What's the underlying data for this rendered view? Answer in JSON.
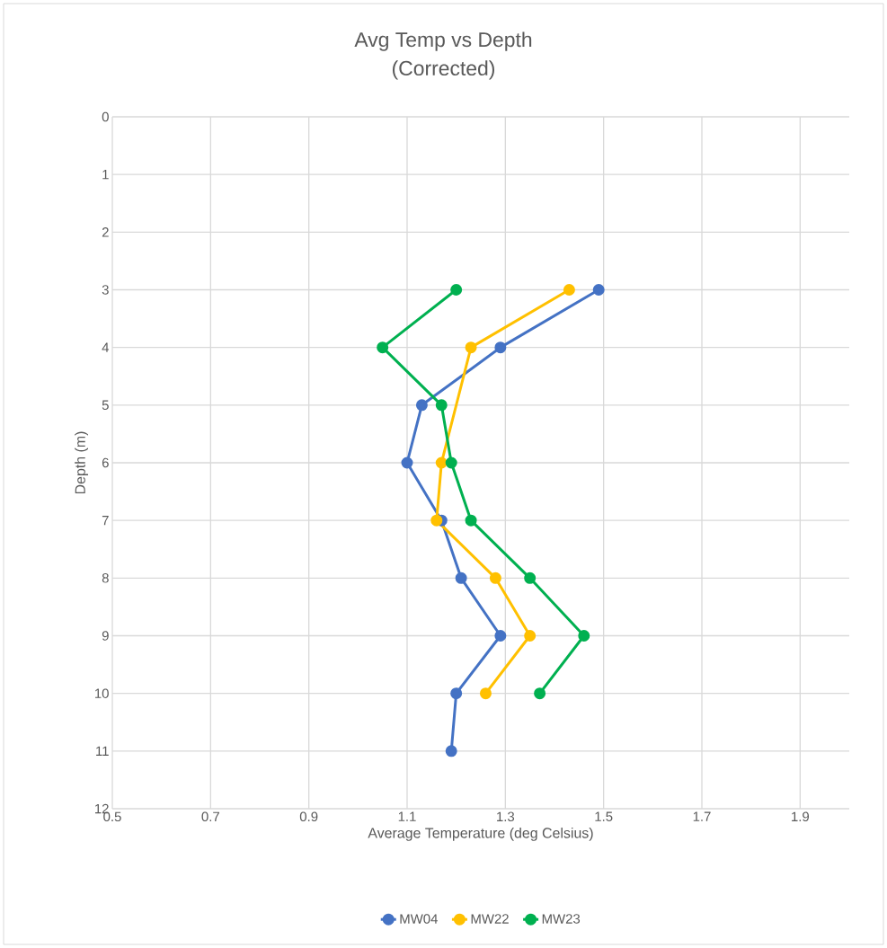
{
  "chart_data": {
    "type": "line",
    "title": "Avg Temp vs Depth",
    "subtitle": "(Corrected)",
    "xlabel": "Average Temperature (deg Celsius)",
    "ylabel": "Depth (m)",
    "xlim": [
      0.5,
      2.0
    ],
    "xticks": [
      {
        "value": 0.5,
        "label": "0.5"
      },
      {
        "value": 0.7,
        "label": "0.7"
      },
      {
        "value": 0.9,
        "label": "0.9"
      },
      {
        "value": 1.1,
        "label": "1.1"
      },
      {
        "value": 1.3,
        "label": "1.3"
      },
      {
        "value": 1.5,
        "label": "1.5"
      },
      {
        "value": 1.7,
        "label": "1.7"
      },
      {
        "value": 1.9,
        "label": "1.9"
      }
    ],
    "ylim": [
      12,
      0
    ],
    "yticks": [
      0,
      1,
      2,
      3,
      4,
      5,
      6,
      7,
      8,
      9,
      10,
      11,
      12
    ],
    "grid": true,
    "legend": "bottom",
    "marker": "circle",
    "line_style": "solid",
    "series": [
      {
        "name": "MW04",
        "color": "#4472c4",
        "x": [
          1.49,
          1.29,
          1.13,
          1.1,
          1.17,
          1.21,
          1.29,
          1.2,
          1.19
        ],
        "values": [
          3,
          4,
          5,
          6,
          7,
          8,
          9,
          10,
          11
        ]
      },
      {
        "name": "MW22",
        "color": "#ffc000",
        "x": [
          1.43,
          1.23,
          null,
          1.17,
          1.16,
          1.28,
          1.35,
          1.26
        ],
        "values": [
          3,
          4,
          null,
          6,
          7,
          8,
          9,
          10
        ]
      },
      {
        "name": "MW23",
        "color": "#00b050",
        "x": [
          1.2,
          1.05,
          1.17,
          1.19,
          1.23,
          1.35,
          1.46,
          1.37
        ],
        "values": [
          3,
          4,
          5,
          6,
          7,
          8,
          9,
          10
        ]
      }
    ]
  }
}
